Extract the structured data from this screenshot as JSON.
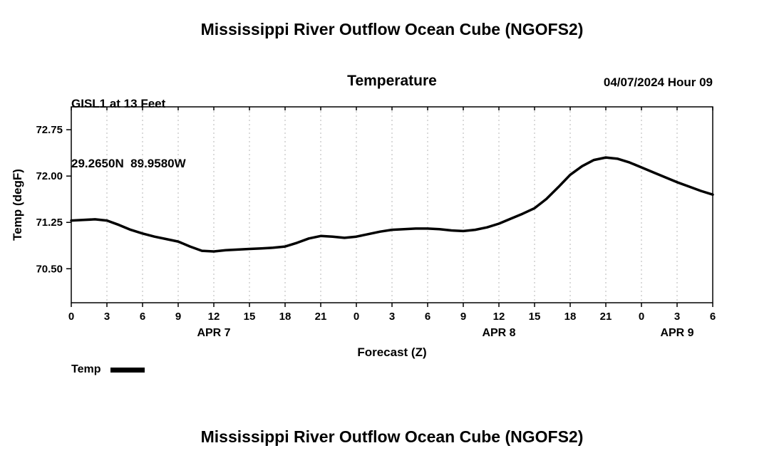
{
  "page": {
    "title_top": "Mississippi River Outflow Ocean Cube (NGOFS2)",
    "title_bottom": "Mississippi River Outflow Ocean Cube (NGOFS2)"
  },
  "header": {
    "station_line1": "GISL1 at 13 Feet",
    "station_line2": "29.2650N  89.9580W",
    "plot_title": "Temperature",
    "datetime": "04/07/2024 Hour 09"
  },
  "legend": {
    "label": "Temp",
    "color": "#000000"
  },
  "chart_data": {
    "type": "line",
    "title": "Temperature",
    "xlabel": "Forecast (Z)",
    "ylabel": "Temp (degF)",
    "xlim": [
      0,
      54
    ],
    "ylim": [
      69.95,
      73.12
    ],
    "x_ticks": [
      0,
      3,
      6,
      9,
      12,
      15,
      18,
      21,
      24,
      27,
      30,
      33,
      36,
      39,
      42,
      45,
      48,
      51,
      54
    ],
    "x_tick_labels": [
      "0",
      "3",
      "6",
      "9",
      "12",
      "15",
      "18",
      "21",
      "0",
      "3",
      "6",
      "9",
      "12",
      "15",
      "18",
      "21",
      "0",
      "3",
      "6"
    ],
    "y_ticks": [
      70.5,
      71.25,
      72.0,
      72.75
    ],
    "date_labels": [
      {
        "label": "APR 7",
        "hour": 12
      },
      {
        "label": "APR 8",
        "hour": 36
      },
      {
        "label": "APR 9",
        "hour": 51
      }
    ],
    "grid": "vertical-dashed",
    "grid_color": "#b4b4b4",
    "legend_position": "bottom-left",
    "series": [
      {
        "name": "Temp",
        "color": "#000000",
        "line_width": 3.5,
        "x": [
          0,
          1,
          2,
          3,
          4,
          5,
          6,
          7,
          8,
          9,
          10,
          11,
          12,
          13,
          14,
          15,
          16,
          17,
          18,
          19,
          20,
          21,
          22,
          23,
          24,
          25,
          26,
          27,
          28,
          29,
          30,
          31,
          32,
          33,
          34,
          35,
          36,
          37,
          38,
          39,
          40,
          41,
          42,
          43,
          44,
          45,
          46,
          47,
          48,
          49,
          50,
          51,
          52,
          53,
          54
        ],
        "values": [
          71.28,
          71.29,
          71.3,
          71.28,
          71.21,
          71.13,
          71.07,
          71.02,
          70.98,
          70.94,
          70.86,
          70.79,
          70.78,
          70.8,
          70.81,
          70.82,
          70.83,
          70.84,
          70.86,
          70.92,
          70.99,
          71.03,
          71.02,
          71.0,
          71.02,
          71.06,
          71.1,
          71.13,
          71.14,
          71.15,
          71.15,
          71.14,
          71.12,
          71.11,
          71.13,
          71.17,
          71.23,
          71.31,
          71.39,
          71.48,
          71.63,
          71.82,
          72.02,
          72.16,
          72.26,
          72.3,
          72.28,
          72.22,
          72.14,
          72.06,
          71.98,
          71.9,
          71.83,
          71.76,
          71.7
        ]
      }
    ]
  }
}
